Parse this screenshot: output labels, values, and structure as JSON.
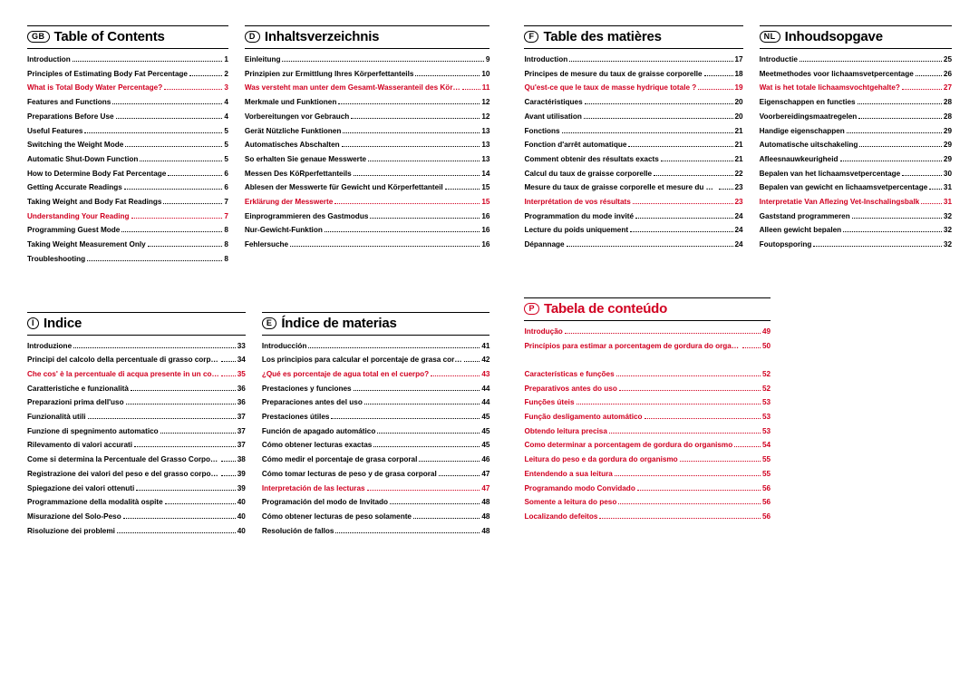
{
  "colors": {
    "red": "#d10020",
    "black": "#000000",
    "bg": "#ffffff"
  },
  "blocks": [
    {
      "badge": "GB",
      "title": "Table of Contents",
      "red": false,
      "entries": [
        {
          "t": "Introduction",
          "p": "1",
          "r": false
        },
        {
          "t": "Principles of Estimating Body Fat Percentage",
          "p": "2",
          "r": false
        },
        {
          "t": "What is Total Body Water Percentage?",
          "p": "3",
          "r": true
        },
        {
          "t": "Features and Functions",
          "p": "4",
          "r": false
        },
        {
          "t": "Preparations Before Use",
          "p": "4",
          "r": false
        },
        {
          "t": "Useful Features",
          "p": "5",
          "r": false
        },
        {
          "t": "Switching the Weight Mode",
          "p": "5",
          "r": false
        },
        {
          "t": "Automatic Shut-Down Function",
          "p": "5",
          "r": false
        },
        {
          "t": "How to Determine Body Fat Percentage",
          "p": "6",
          "r": false
        },
        {
          "t": "Getting Accurate Readings",
          "p": "6",
          "r": false
        },
        {
          "t": "Taking Weight and Body Fat Readings",
          "p": "7",
          "r": false
        },
        {
          "t": "Understanding Your Reading",
          "p": "7",
          "r": true
        },
        {
          "t": "Programming Guest Mode",
          "p": "8",
          "r": false
        },
        {
          "t": "Taking Weight Measurement Only",
          "p": "8",
          "r": false
        },
        {
          "t": "Troubleshooting",
          "p": "8",
          "r": false
        }
      ]
    },
    {
      "badge": "D",
      "title": "Inhaltsverzeichnis",
      "red": false,
      "entries": [
        {
          "t": "Einleitung",
          "p": "9",
          "r": false
        },
        {
          "t": "Prinzipien zur Ermittlung Ihres Körperfettanteils",
          "p": "10",
          "r": false
        },
        {
          "t": "Was versteht man unter dem Gesamt-Wasseranteil des Körpers?",
          "p": "11",
          "r": true
        },
        {
          "t": "Merkmale und Funktionen",
          "p": "12",
          "r": false
        },
        {
          "t": "Vorbereitungen vor Gebrauch",
          "p": "12",
          "r": false
        },
        {
          "t": "Gerät Nützliche Funktionen",
          "p": "13",
          "r": false
        },
        {
          "t": "Automatisches Abschalten",
          "p": "13",
          "r": false
        },
        {
          "t": "So erhalten Sie genaue Messwerte",
          "p": "13",
          "r": false
        },
        {
          "t": "Messen Des KöRperfettanteils",
          "p": "14",
          "r": false
        },
        {
          "t": "Ablesen der Messwerte für Gewicht und Körperfettanteil",
          "p": "15",
          "r": false
        },
        {
          "t": "Erklärung der Messwerte",
          "p": "15",
          "r": true
        },
        {
          "t": "Einprogrammieren des Gastmodus",
          "p": "16",
          "r": false
        },
        {
          "t": "Nur-Gewicht-Funktion",
          "p": "16",
          "r": false
        },
        {
          "t": "Fehlersuche",
          "p": "16",
          "r": false
        }
      ]
    },
    {
      "badge": "F",
      "title": "Table des matières",
      "red": false,
      "entries": [
        {
          "t": "Introduction",
          "p": "17",
          "r": false
        },
        {
          "t": "Principes de mesure du taux de graisse corporelle",
          "p": "18",
          "r": false
        },
        {
          "t": "Qu'est-ce que le taux de masse hydrique totale ?",
          "p": "19",
          "r": true
        },
        {
          "t": "Caractéristiques",
          "p": "20",
          "r": false
        },
        {
          "t": "Avant utilisation",
          "p": "20",
          "r": false
        },
        {
          "t": "Fonctions",
          "p": "21",
          "r": false
        },
        {
          "t": "Fonction d'arrêt automatique",
          "p": "21",
          "r": false
        },
        {
          "t": "Comment obtenir des résultats exacts",
          "p": "21",
          "r": false
        },
        {
          "t": "Calcul du taux de graisse corporelle",
          "p": "22",
          "r": false
        },
        {
          "t": "Mesure du taux de graisse corporelle et mesure du poids",
          "p": "23",
          "r": false
        },
        {
          "t": "Interprétation de vos résultats",
          "p": "23",
          "r": true
        },
        {
          "t": "Programmation du mode invité",
          "p": "24",
          "r": false
        },
        {
          "t": "Lecture du poids uniquement",
          "p": "24",
          "r": false
        },
        {
          "t": "Dépannage",
          "p": "24",
          "r": false
        }
      ]
    },
    {
      "badge": "NL",
      "title": "Inhoudsopgave",
      "red": false,
      "entries": [
        {
          "t": "Introductie",
          "p": "25",
          "r": false
        },
        {
          "t": "Meetmethodes voor lichaamsvetpercentage",
          "p": "26",
          "r": false
        },
        {
          "t": "Wat is het totale lichaamsvochtgehalte?",
          "p": "27",
          "r": true
        },
        {
          "t": "Eigenschappen en functies",
          "p": "28",
          "r": false
        },
        {
          "t": "Voorbereidingsmaatregelen",
          "p": "28",
          "r": false
        },
        {
          "t": "Handige eigenschappen",
          "p": "29",
          "r": false
        },
        {
          "t": "Automatische uitschakeling",
          "p": "29",
          "r": false
        },
        {
          "t": "Afleesnauwkeurigheid",
          "p": "29",
          "r": false
        },
        {
          "t": "Bepalen van het lichaamsvetpercentage",
          "p": "30",
          "r": false
        },
        {
          "t": "Bepalen van gewicht en lichaamsvetpercentage",
          "p": "31",
          "r": false
        },
        {
          "t": "Interpretatie Van Aflezing Vet-Inschalingsbalk",
          "p": "31",
          "r": true
        },
        {
          "t": "Gaststand programmeren",
          "p": "32",
          "r": false
        },
        {
          "t": "Alleen gewicht bepalen",
          "p": "32",
          "r": false
        },
        {
          "t": "Foutopsporing",
          "p": "32",
          "r": false
        }
      ]
    },
    {
      "badge": "I",
      "title": "Indice",
      "red": false,
      "entries": [
        {
          "t": "Introduzione",
          "p": "33",
          "r": false
        },
        {
          "t": "Principi del calcolo della percentuale di grasso corporeo",
          "p": "34",
          "r": false
        },
        {
          "t": "Che cos' è la percentuale di acqua presente in un corpo?",
          "p": "35",
          "r": true
        },
        {
          "t": "Caratteristiche e funzionalità",
          "p": "36",
          "r": false
        },
        {
          "t": "Preparazioni prima dell'uso",
          "p": "36",
          "r": false
        },
        {
          "t": "Funzionalità utili",
          "p": "37",
          "r": false
        },
        {
          "t": "Funzione di spegnimento automatico",
          "p": "37",
          "r": false
        },
        {
          "t": "Rilevamento di valori accurati",
          "p": "37",
          "r": false
        },
        {
          "t": "Come si determina la Percentuale del Grasso Corporeo",
          "p": "38",
          "r": false
        },
        {
          "t": "Registrazione dei valori del peso e del grasso corporeo",
          "p": "39",
          "r": false
        },
        {
          "t": "Spiegazione dei valori ottenuti",
          "p": "39",
          "r": false
        },
        {
          "t": "Programmazione della modalità ospite",
          "p": "40",
          "r": false
        },
        {
          "t": "Misurazione del Solo-Peso",
          "p": "40",
          "r": false
        },
        {
          "t": "Risoluzione dei problemi",
          "p": "40",
          "r": false
        }
      ]
    },
    {
      "badge": "E",
      "title": "Índice de materias",
      "red": false,
      "entries": [
        {
          "t": "Introducción",
          "p": "41",
          "r": false
        },
        {
          "t": "Los principios para calcular el porcentaje de grasa corporal",
          "p": "42",
          "r": false
        },
        {
          "t": "¿Qué es porcentaje de agua total en el cuerpo?",
          "p": "43",
          "r": true
        },
        {
          "t": "Prestaciones y funciones",
          "p": "44",
          "r": false
        },
        {
          "t": "Preparaciones antes del uso",
          "p": "44",
          "r": false
        },
        {
          "t": "Prestaciones útiles",
          "p": "45",
          "r": false
        },
        {
          "t": "Función de apagado automático",
          "p": "45",
          "r": false
        },
        {
          "t": "Cómo obtener lecturas exactas",
          "p": "45",
          "r": false
        },
        {
          "t": "Cómo medir el porcentaje de grasa corporal",
          "p": "46",
          "r": false
        },
        {
          "t": "Cómo tomar lecturas de peso y de grasa corporal",
          "p": "47",
          "r": false
        },
        {
          "t": "Interpretación de las lecturas",
          "p": "47",
          "r": true
        },
        {
          "t": "Programación del modo de Invitado",
          "p": "48",
          "r": false
        },
        {
          "t": "Cómo obtener lecturas de peso solamente",
          "p": "48",
          "r": false
        },
        {
          "t": "Resolución de fallos",
          "p": "48",
          "r": false
        }
      ]
    },
    {
      "badge": "P",
      "title": "Tabela de conteúdo",
      "red": true,
      "entries": [
        {
          "t": "Introdução",
          "p": "49",
          "r": true
        },
        {
          "t": "Princípios para estimar a porcentagem de gordura do organismo",
          "p": "50",
          "r": true
        },
        {
          "t": "",
          "p": "",
          "r": true,
          "empty": true
        },
        {
          "t": "Características e funções",
          "p": "52",
          "r": true
        },
        {
          "t": "Preparativos antes do uso",
          "p": "52",
          "r": true
        },
        {
          "t": "Funções úteis",
          "p": "53",
          "r": true
        },
        {
          "t": "Função desligamento automático",
          "p": "53",
          "r": true
        },
        {
          "t": "Obtendo leitura precisa",
          "p": "53",
          "r": true
        },
        {
          "t": "Como determinar a porcentagem de gordura do organismo",
          "p": "54",
          "r": true
        },
        {
          "t": "Leitura do peso e da gordura do organismo",
          "p": "55",
          "r": true
        },
        {
          "t": "Entendendo a sua leitura",
          "p": "55",
          "r": true
        },
        {
          "t": "Programando modo Convidado",
          "p": "56",
          "r": true
        },
        {
          "t": "Somente a leitura do peso",
          "p": "56",
          "r": true
        },
        {
          "t": "Localizando defeitos",
          "p": "56",
          "r": true
        }
      ]
    }
  ]
}
